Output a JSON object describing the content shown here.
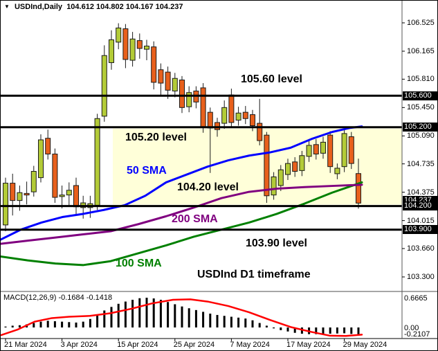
{
  "header": {
    "marker": "▼",
    "symbol_title": "USDInd,Daily",
    "quote": {
      "open": "104.612",
      "high": "104.802",
      "low": "104.167",
      "close": "104.237"
    }
  },
  "annotations": {
    "level_10560": "105.60 level",
    "level_10520": "105.20 level",
    "sma50": "50 SMA",
    "level_10420": "104.20 level",
    "sma200": "200 SMA",
    "level_10390": "103.90 level",
    "sma100": "100 SMA",
    "timeframe": "USDInd D1 timeframe"
  },
  "colors": {
    "bull": "#b3cb37",
    "bear": "#e8601c",
    "wick": "#1a1a1a",
    "sma50": "#0000ff",
    "sma100": "#008000",
    "sma200": "#800080",
    "macd_signal": "#ff0000",
    "macd_hist": "#000000",
    "zone": "#ffffd9",
    "level_line": "#000000",
    "tag_bg": "#000000",
    "tag_text": "#ffffff"
  },
  "chart_data": {
    "type": "candlestick",
    "symbol": "USDInd",
    "timeframe": "D1",
    "title": "USDInd,Daily  104.612 104.802 104.167 104.237",
    "price_axis_ticks": [
      "106.525",
      "106.165",
      "105.810",
      "105.450",
      "105.090",
      "104.735",
      "104.375",
      "104.015",
      "103.660",
      "103.300"
    ],
    "price_axis_range": [
      103.3,
      106.525
    ],
    "time_axis_labels": [
      "21 Mar 2024",
      "3 Apr 2024",
      "15 Apr 2024",
      "25 Apr 2024",
      "7 May 2024",
      "17 May 2024",
      "29 May 2024"
    ],
    "levels": [
      {
        "price": 105.6,
        "tag": "105.600"
      },
      {
        "price": 105.2,
        "tag": "105.200"
      },
      {
        "price": 104.2,
        "tag": "104.200"
      },
      {
        "price": 103.9,
        "tag": "103.900"
      }
    ],
    "current_price": {
      "value": 104.237,
      "tag": "104.237"
    },
    "highlight_zone": {
      "from_price": 105.2,
      "to_price": 104.2
    },
    "candles": [
      {
        "o": 103.96,
        "h": 104.56,
        "l": 103.88,
        "c": 104.49
      },
      {
        "o": 104.49,
        "h": 104.61,
        "l": 104.08,
        "c": 104.27
      },
      {
        "o": 104.27,
        "h": 104.46,
        "l": 104.14,
        "c": 104.37
      },
      {
        "o": 104.36,
        "h": 104.51,
        "l": 104.22,
        "c": 104.34
      },
      {
        "o": 104.38,
        "h": 104.71,
        "l": 104.32,
        "c": 104.64
      },
      {
        "o": 104.56,
        "h": 105.11,
        "l": 104.5,
        "c": 105.04
      },
      {
        "o": 105.06,
        "h": 105.17,
        "l": 104.79,
        "c": 104.86
      },
      {
        "o": 104.86,
        "h": 104.93,
        "l": 104.24,
        "c": 104.31
      },
      {
        "o": 104.32,
        "h": 104.46,
        "l": 104.17,
        "c": 104.34
      },
      {
        "o": 104.34,
        "h": 104.5,
        "l": 104.21,
        "c": 104.4
      },
      {
        "o": 104.46,
        "h": 104.56,
        "l": 104.09,
        "c": 104.19
      },
      {
        "o": 104.18,
        "h": 104.33,
        "l": 104.04,
        "c": 104.24
      },
      {
        "o": 104.18,
        "h": 104.33,
        "l": 104.05,
        "c": 104.23
      },
      {
        "o": 104.21,
        "h": 105.37,
        "l": 104.15,
        "c": 105.31
      },
      {
        "o": 105.34,
        "h": 106.24,
        "l": 105.27,
        "c": 106.11
      },
      {
        "o": 106.02,
        "h": 106.43,
        "l": 105.93,
        "c": 106.31
      },
      {
        "o": 106.28,
        "h": 106.52,
        "l": 106.19,
        "c": 106.46
      },
      {
        "o": 106.45,
        "h": 106.51,
        "l": 105.95,
        "c": 106.06
      },
      {
        "o": 106.05,
        "h": 106.41,
        "l": 105.97,
        "c": 106.32
      },
      {
        "o": 106.3,
        "h": 106.39,
        "l": 106.07,
        "c": 106.2
      },
      {
        "o": 106.19,
        "h": 106.31,
        "l": 106.05,
        "c": 106.23
      },
      {
        "o": 106.22,
        "h": 106.29,
        "l": 105.68,
        "c": 105.77
      },
      {
        "o": 105.93,
        "h": 106.01,
        "l": 105.61,
        "c": 105.76
      },
      {
        "o": 105.9,
        "h": 105.97,
        "l": 105.56,
        "c": 105.67
      },
      {
        "o": 105.66,
        "h": 105.89,
        "l": 105.58,
        "c": 105.82
      },
      {
        "o": 105.8,
        "h": 105.85,
        "l": 105.38,
        "c": 105.45
      },
      {
        "o": 105.46,
        "h": 105.72,
        "l": 105.39,
        "c": 105.64
      },
      {
        "o": 105.66,
        "h": 105.72,
        "l": 105.44,
        "c": 105.52
      },
      {
        "o": 105.7,
        "h": 105.76,
        "l": 105.13,
        "c": 105.2
      },
      {
        "o": 105.39,
        "h": 105.45,
        "l": 104.62,
        "c": 105.19
      },
      {
        "o": 105.26,
        "h": 105.32,
        "l": 105.08,
        "c": 105.17
      },
      {
        "o": 105.25,
        "h": 105.54,
        "l": 105.18,
        "c": 105.45
      },
      {
        "o": 105.61,
        "h": 105.69,
        "l": 105.2,
        "c": 105.26
      },
      {
        "o": 105.29,
        "h": 105.46,
        "l": 105.22,
        "c": 105.38
      },
      {
        "o": 105.39,
        "h": 105.47,
        "l": 105.24,
        "c": 105.31
      },
      {
        "o": 105.36,
        "h": 105.42,
        "l": 105.15,
        "c": 105.22
      },
      {
        "o": 105.25,
        "h": 105.56,
        "l": 104.97,
        "c": 105.03
      },
      {
        "o": 105.1,
        "h": 105.14,
        "l": 104.24,
        "c": 104.33
      },
      {
        "o": 104.34,
        "h": 104.63,
        "l": 104.28,
        "c": 104.57
      },
      {
        "o": 104.46,
        "h": 104.72,
        "l": 104.39,
        "c": 104.66
      },
      {
        "o": 104.6,
        "h": 104.8,
        "l": 104.53,
        "c": 104.74
      },
      {
        "o": 104.76,
        "h": 104.82,
        "l": 104.57,
        "c": 104.64
      },
      {
        "o": 104.65,
        "h": 104.9,
        "l": 104.58,
        "c": 104.84
      },
      {
        "o": 104.83,
        "h": 105.03,
        "l": 104.76,
        "c": 104.97
      },
      {
        "o": 104.98,
        "h": 105.05,
        "l": 104.79,
        "c": 104.86
      },
      {
        "o": 104.87,
        "h": 105.08,
        "l": 104.8,
        "c": 105.01
      },
      {
        "o": 105.1,
        "h": 105.15,
        "l": 104.62,
        "c": 104.7
      },
      {
        "o": 104.61,
        "h": 104.74,
        "l": 104.54,
        "c": 104.68
      },
      {
        "o": 104.7,
        "h": 105.17,
        "l": 104.63,
        "c": 105.12
      },
      {
        "o": 105.08,
        "h": 105.14,
        "l": 104.67,
        "c": 104.74
      },
      {
        "o": 104.612,
        "h": 104.802,
        "l": 104.167,
        "c": 104.237
      }
    ],
    "time_tick_candle_indices": [
      0,
      8,
      16,
      24,
      32,
      40,
      48
    ],
    "sma50_points": [
      [
        0,
        103.77
      ],
      [
        30,
        103.9
      ],
      [
        60,
        103.99
      ],
      [
        90,
        104.06
      ],
      [
        120,
        104.1
      ],
      [
        150,
        104.15
      ],
      [
        180,
        104.21
      ],
      [
        210,
        104.33
      ],
      [
        240,
        104.5
      ],
      [
        270,
        104.6
      ],
      [
        300,
        104.7
      ],
      [
        330,
        104.78
      ],
      [
        360,
        104.84
      ],
      [
        390,
        104.88
      ],
      [
        420,
        104.94
      ],
      [
        450,
        105.05
      ],
      [
        480,
        105.14
      ],
      [
        505,
        105.19
      ],
      [
        523,
        105.21
      ]
    ],
    "sma100_points": [
      [
        0,
        103.56
      ],
      [
        40,
        103.51
      ],
      [
        80,
        103.47
      ],
      [
        120,
        103.45
      ],
      [
        160,
        103.5
      ],
      [
        200,
        103.6
      ],
      [
        240,
        103.7
      ],
      [
        280,
        103.81
      ],
      [
        320,
        103.9
      ],
      [
        360,
        103.99
      ],
      [
        400,
        104.1
      ],
      [
        440,
        104.23
      ],
      [
        480,
        104.37
      ],
      [
        523,
        104.5
      ]
    ],
    "sma200_points": [
      [
        0,
        103.72
      ],
      [
        40,
        103.76
      ],
      [
        80,
        103.8
      ],
      [
        120,
        103.84
      ],
      [
        160,
        103.88
      ],
      [
        200,
        103.97
      ],
      [
        240,
        104.07
      ],
      [
        280,
        104.18
      ],
      [
        320,
        104.3
      ],
      [
        360,
        104.38
      ],
      [
        400,
        104.42
      ],
      [
        440,
        104.44
      ],
      [
        480,
        104.455
      ],
      [
        523,
        104.47
      ]
    ],
    "macd": {
      "label": "MACD(12,26,9) -0.1684 -0.1418",
      "values": [
        0.02,
        0.04,
        0.05,
        0.07,
        0.1,
        0.13,
        0.15,
        0.14,
        0.13,
        0.12,
        0.11,
        0.13,
        0.19,
        0.28,
        0.38,
        0.46,
        0.53,
        0.58,
        0.62,
        0.655,
        0.666,
        0.65,
        0.62,
        0.57,
        0.52,
        0.47,
        0.43,
        0.39,
        0.35,
        0.31,
        0.28,
        0.26,
        0.24,
        0.22,
        0.2,
        0.16,
        0.1,
        0.04,
        -0.02,
        -0.06,
        -0.09,
        -0.12,
        -0.14,
        -0.15,
        -0.15,
        -0.145,
        -0.14,
        -0.135,
        -0.13,
        -0.145,
        -0.168
      ],
      "signal_points": [
        [
          2,
          -0.17
        ],
        [
          25,
          -0.05
        ],
        [
          50,
          0.13
        ],
        [
          75,
          0.21
        ],
        [
          100,
          0.24
        ],
        [
          130,
          0.26
        ],
        [
          160,
          0.32
        ],
        [
          190,
          0.42
        ],
        [
          220,
          0.54
        ],
        [
          250,
          0.62
        ],
        [
          275,
          0.63
        ],
        [
          300,
          0.58
        ],
        [
          330,
          0.48
        ],
        [
          360,
          0.34
        ],
        [
          390,
          0.17
        ],
        [
          420,
          0.01
        ],
        [
          450,
          -0.1
        ],
        [
          477,
          -0.185
        ],
        [
          500,
          -0.19
        ],
        [
          523,
          -0.16
        ]
      ],
      "scale_labels": [
        {
          "label": "0.6665",
          "v": 0.6665
        },
        {
          "label": "0.00",
          "v": 0.0
        },
        {
          "label": "-0.2107",
          "v": -0.2107
        }
      ]
    }
  }
}
